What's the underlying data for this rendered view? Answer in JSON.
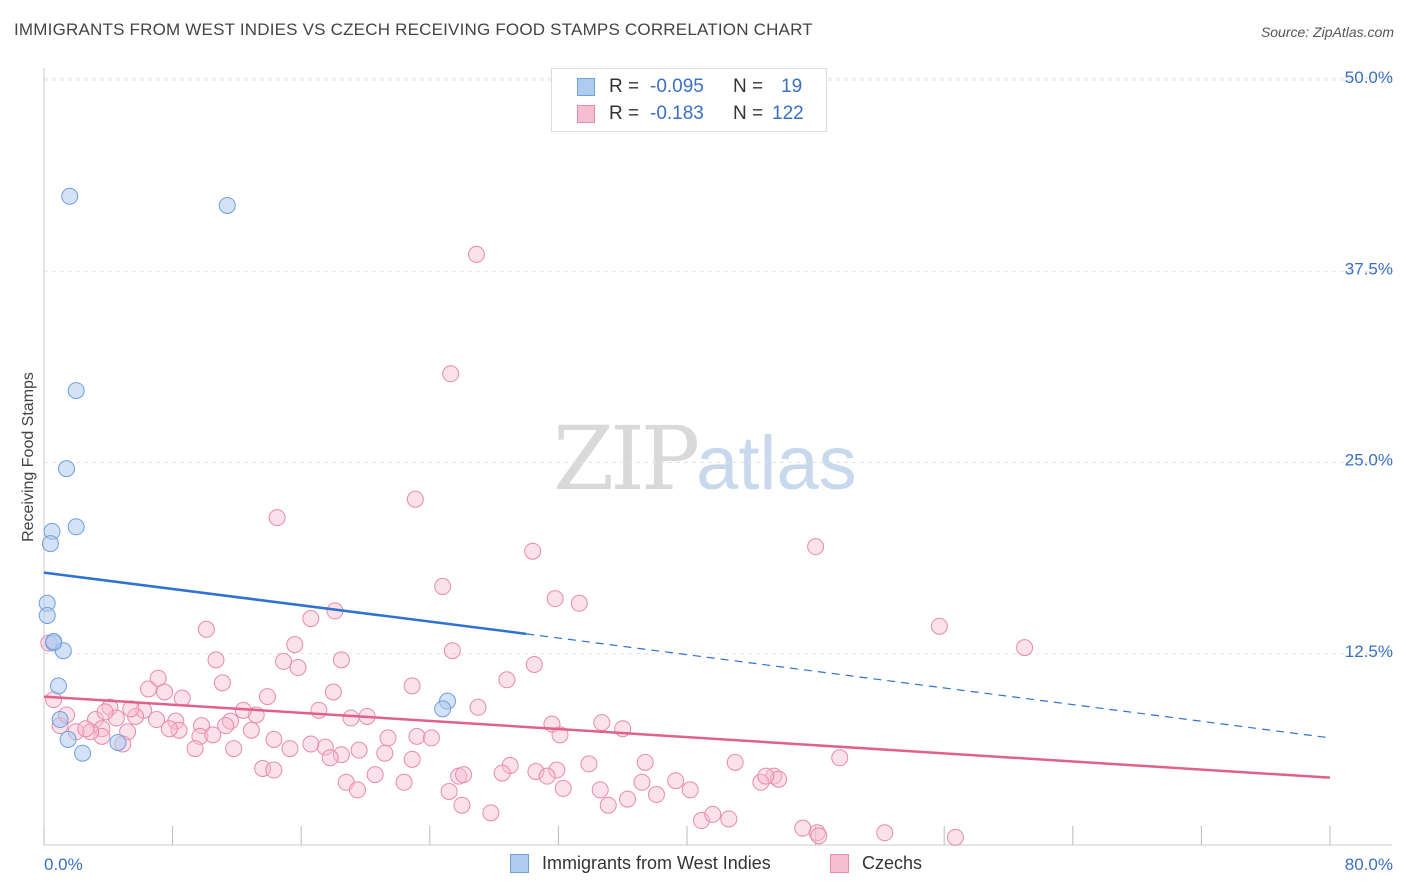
{
  "title": "IMMIGRANTS FROM WEST INDIES VS CZECH RECEIVING FOOD STAMPS CORRELATION CHART",
  "source": "Source: ZipAtlas.com",
  "watermark": {
    "part1": "ZIP",
    "part2": "atlas"
  },
  "legend_top": {
    "rows": [
      {
        "r_label": "R =",
        "r_value": "-0.095",
        "n_label": "N =",
        "n_value": "19",
        "color": "#aecbf0",
        "border": "#6f9fdc"
      },
      {
        "r_label": "R =",
        "r_value": "-0.183",
        "n_label": "N =",
        "n_value": "122",
        "color": "#f7bdd0",
        "border": "#e88aab"
      }
    ]
  },
  "legend_bottom": {
    "items": [
      {
        "label": "Immigrants from West Indies",
        "color": "#aecbf0",
        "border": "#6f9fdc"
      },
      {
        "label": "Czechs",
        "color": "#f7bdd0",
        "border": "#e88aab"
      }
    ]
  },
  "chart_data": {
    "type": "scatter",
    "title": "IMMIGRANTS FROM WEST INDIES VS CZECH RECEIVING FOOD STAMPS CORRELATION CHART",
    "xlabel": "",
    "ylabel": "Receiving Food Stamps",
    "xlim": [
      0,
      80
    ],
    "ylim": [
      0,
      50
    ],
    "x_tick_labels": [
      "0.0%",
      "80.0%"
    ],
    "y_ticks": [
      12.5,
      25.0,
      37.5,
      50.0
    ],
    "y_tick_labels": [
      "12.5%",
      "25.0%",
      "37.5%",
      "50.0%"
    ],
    "grid": true,
    "legend_position": "top-center",
    "colors": {
      "blue": "#6f9fdc",
      "blue_line": "#2f72d2",
      "pink": "#e88aab",
      "pink_line": "#e0608e",
      "axis_text": "#3a6fc4"
    },
    "series": [
      {
        "name": "Immigrants from West Indies",
        "color": "#aecbf0",
        "points": [
          [
            1.6,
            42.4
          ],
          [
            11.4,
            41.8
          ],
          [
            2.0,
            29.7
          ],
          [
            1.4,
            24.6
          ],
          [
            0.5,
            20.5
          ],
          [
            2.0,
            20.8
          ],
          [
            0.4,
            19.7
          ],
          [
            0.2,
            15.8
          ],
          [
            0.2,
            15.0
          ],
          [
            0.6,
            13.2
          ],
          [
            1.2,
            12.7
          ],
          [
            0.9,
            10.4
          ],
          [
            25.1,
            9.4
          ],
          [
            24.8,
            8.9
          ],
          [
            1.0,
            8.2
          ],
          [
            1.5,
            6.9
          ],
          [
            2.4,
            6.0
          ],
          [
            4.6,
            6.7
          ],
          [
            0.6,
            13.3
          ]
        ],
        "trend": {
          "x0": 0,
          "y0": 17.8,
          "x1": 30,
          "y1": 13.8,
          "dash_x1": 80,
          "dash_y1": 7.0
        }
      },
      {
        "name": "Czechs",
        "color": "#f7bdd0",
        "points": [
          [
            26.9,
            38.6
          ],
          [
            25.3,
            30.8
          ],
          [
            23.1,
            22.6
          ],
          [
            14.5,
            21.4
          ],
          [
            30.4,
            19.2
          ],
          [
            48.0,
            19.5
          ],
          [
            24.8,
            16.9
          ],
          [
            31.8,
            16.1
          ],
          [
            33.3,
            15.8
          ],
          [
            18.1,
            15.3
          ],
          [
            16.6,
            14.8
          ],
          [
            55.7,
            14.3
          ],
          [
            10.1,
            14.1
          ],
          [
            15.6,
            13.1
          ],
          [
            25.4,
            12.7
          ],
          [
            61.0,
            12.9
          ],
          [
            10.7,
            12.1
          ],
          [
            14.9,
            12.0
          ],
          [
            18.5,
            12.1
          ],
          [
            15.8,
            11.6
          ],
          [
            30.5,
            11.8
          ],
          [
            7.1,
            10.9
          ],
          [
            28.8,
            10.8
          ],
          [
            11.1,
            10.6
          ],
          [
            22.9,
            10.4
          ],
          [
            6.5,
            10.2
          ],
          [
            7.5,
            10.0
          ],
          [
            18.0,
            10.0
          ],
          [
            8.6,
            9.6
          ],
          [
            13.9,
            9.7
          ],
          [
            4.1,
            9.0
          ],
          [
            6.2,
            8.8
          ],
          [
            17.1,
            8.8
          ],
          [
            5.7,
            8.4
          ],
          [
            3.2,
            8.2
          ],
          [
            4.5,
            8.3
          ],
          [
            7.0,
            8.2
          ],
          [
            11.6,
            8.1
          ],
          [
            13.2,
            8.5
          ],
          [
            8.2,
            8.1
          ],
          [
            20.1,
            8.4
          ],
          [
            19.1,
            8.3
          ],
          [
            31.6,
            7.9
          ],
          [
            34.7,
            8.0
          ],
          [
            36.0,
            7.6
          ],
          [
            9.8,
            7.8
          ],
          [
            11.3,
            7.8
          ],
          [
            3.6,
            7.6
          ],
          [
            3.6,
            7.1
          ],
          [
            2.0,
            7.4
          ],
          [
            2.9,
            7.4
          ],
          [
            5.2,
            7.4
          ],
          [
            8.4,
            7.5
          ],
          [
            9.7,
            7.1
          ],
          [
            10.5,
            7.2
          ],
          [
            12.9,
            7.5
          ],
          [
            14.3,
            6.9
          ],
          [
            21.4,
            7.0
          ],
          [
            23.2,
            7.1
          ],
          [
            24.1,
            7.0
          ],
          [
            32.1,
            7.2
          ],
          [
            4.9,
            6.6
          ],
          [
            11.8,
            6.3
          ],
          [
            9.4,
            6.3
          ],
          [
            15.3,
            6.3
          ],
          [
            17.5,
            6.4
          ],
          [
            19.6,
            6.2
          ],
          [
            21.2,
            6.0
          ],
          [
            18.5,
            5.9
          ],
          [
            17.8,
            5.7
          ],
          [
            22.9,
            5.6
          ],
          [
            33.9,
            5.3
          ],
          [
            31.9,
            4.9
          ],
          [
            29.0,
            5.2
          ],
          [
            30.6,
            4.8
          ],
          [
            37.4,
            5.4
          ],
          [
            43.0,
            5.4
          ],
          [
            49.5,
            5.7
          ],
          [
            13.6,
            5.0
          ],
          [
            14.3,
            4.9
          ],
          [
            20.6,
            4.6
          ],
          [
            25.8,
            4.5
          ],
          [
            28.5,
            4.7
          ],
          [
            31.3,
            4.5
          ],
          [
            39.3,
            4.2
          ],
          [
            45.4,
            4.5
          ],
          [
            45.7,
            4.3
          ],
          [
            18.8,
            4.1
          ],
          [
            22.4,
            4.1
          ],
          [
            44.6,
            4.1
          ],
          [
            19.5,
            3.6
          ],
          [
            25.2,
            3.5
          ],
          [
            34.6,
            3.6
          ],
          [
            32.3,
            3.7
          ],
          [
            38.1,
            3.3
          ],
          [
            40.2,
            3.6
          ],
          [
            26.0,
            2.6
          ],
          [
            35.1,
            2.6
          ],
          [
            36.3,
            3.0
          ],
          [
            40.9,
            1.6
          ],
          [
            41.6,
            2.0
          ],
          [
            42.6,
            1.7
          ],
          [
            27.8,
            2.1
          ],
          [
            47.2,
            1.1
          ],
          [
            48.1,
            0.8
          ],
          [
            48.2,
            0.6
          ],
          [
            52.3,
            0.8
          ],
          [
            56.7,
            0.5
          ],
          [
            0.3,
            13.2
          ],
          [
            0.6,
            9.5
          ],
          [
            1.0,
            7.8
          ],
          [
            2.6,
            7.6
          ],
          [
            1.4,
            8.5
          ],
          [
            3.8,
            8.7
          ],
          [
            5.4,
            8.9
          ],
          [
            26.1,
            4.6
          ],
          [
            37.2,
            4.1
          ],
          [
            44.9,
            4.5
          ],
          [
            16.6,
            6.6
          ],
          [
            27.0,
            9.0
          ],
          [
            12.4,
            8.8
          ],
          [
            7.8,
            7.6
          ]
        ],
        "trend": {
          "x0": 0,
          "y0": 9.7,
          "x1": 80,
          "y1": 4.4
        }
      }
    ]
  }
}
